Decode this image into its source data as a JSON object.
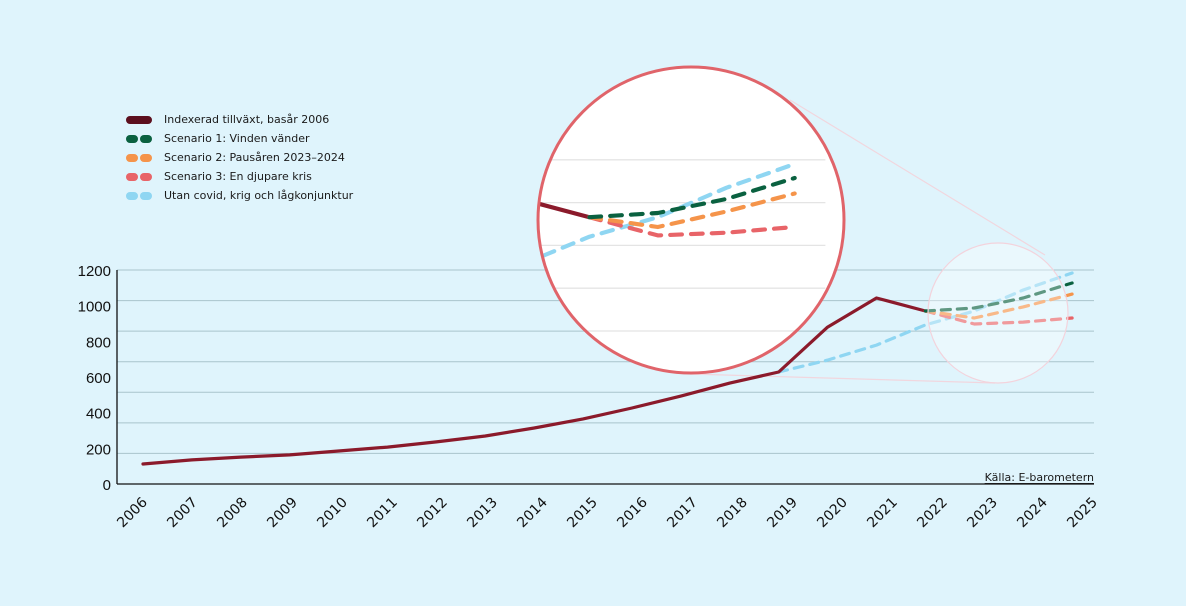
{
  "chart_data": {
    "type": "line",
    "title": "",
    "xlabel": "",
    "ylabel": "",
    "ylim": [
      0,
      1200
    ],
    "yticks": [
      "0",
      "200",
      "400",
      "600",
      "800",
      "1000",
      "1200"
    ],
    "grid": true,
    "legend_position": "top-left",
    "x": [
      "2006",
      "2007",
      "2008",
      "2009",
      "2010",
      "2011",
      "2012",
      "2013",
      "2014",
      "2015",
      "2016",
      "2017",
      "2018",
      "2019",
      "2020",
      "2021",
      "2022",
      "2023",
      "2024",
      "2025"
    ],
    "series": [
      {
        "name": "Indexerad tillväxt, basår 2006",
        "color": "#8b1a2b",
        "style": "solid",
        "x": [
          "2006",
          "2007",
          "2008",
          "2009",
          "2010",
          "2011",
          "2012",
          "2013",
          "2014",
          "2015",
          "2016",
          "2017",
          "2018",
          "2019",
          "2020",
          "2021",
          "2022"
        ],
        "values": [
          112,
          135,
          151,
          163,
          185,
          207,
          236,
          269,
          314,
          365,
          426,
          493,
          566,
          628,
          880,
          1043,
          970
        ]
      },
      {
        "name": "Scenario 1: Vinden vänder",
        "color": "#0a6140",
        "style": "dashed",
        "x": [
          "2022",
          "2023",
          "2024",
          "2025"
        ],
        "values": [
          970,
          987,
          1043,
          1127
        ]
      },
      {
        "name": "Scenario 2: Pausåren 2023–2024",
        "color": "#f5944a",
        "style": "dashed",
        "x": [
          "2022",
          "2023",
          "2024",
          "2025"
        ],
        "values": [
          970,
          931,
          993,
          1065
        ]
      },
      {
        "name": "Scenario 3: En djupare kris",
        "color": "#e86468",
        "style": "dashed",
        "x": [
          "2022",
          "2023",
          "2024",
          "2025"
        ],
        "values": [
          970,
          897,
          908,
          931
        ]
      },
      {
        "name": "Utan covid, krig och lågkonjunktur",
        "color": "#8fd6f2",
        "style": "dashed",
        "x": [
          "2019",
          "2020",
          "2021",
          "2022",
          "2023",
          "2024",
          "2025"
        ],
        "values": [
          628,
          695,
          779,
          892,
          970,
          1088,
          1183
        ]
      }
    ],
    "annotations": [
      "Källa: E-barometern"
    ],
    "magnifier": {
      "focus_years": [
        "2022",
        "2025"
      ],
      "zoom": 1.4
    }
  },
  "legend": {
    "items": [
      {
        "label": "Indexerad tillväxt, basår 2006",
        "color": "#5c0f1e",
        "style": "solid"
      },
      {
        "label": "Scenario 1: Vinden vänder",
        "color": "#0a6140",
        "style": "dashed"
      },
      {
        "label": "Scenario 2: Pausåren 2023–2024",
        "color": "#f5944a",
        "style": "dashed"
      },
      {
        "label": "Scenario 3: En djupare kris",
        "color": "#e86468",
        "style": "dashed"
      },
      {
        "label": "Utan covid, krig och lågkonjunktur",
        "color": "#8fd6f2",
        "style": "dashed"
      }
    ]
  },
  "source": "Källa: E-barometern",
  "colors": {
    "background": "#dff4fc",
    "grid": "#a9c4cc",
    "magnifier_ring": "#e0646a"
  }
}
